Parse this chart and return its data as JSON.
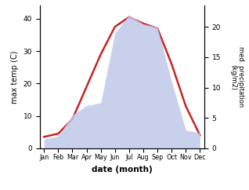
{
  "months": [
    "Jan",
    "Feb",
    "Mar",
    "Apr",
    "May",
    "Jun",
    "Jul",
    "Aug",
    "Sep",
    "Oct",
    "Nov",
    "Dec"
  ],
  "month_indices": [
    0,
    1,
    2,
    3,
    4,
    5,
    6,
    7,
    8,
    9,
    10,
    11
  ],
  "temperature": [
    3.5,
    4.5,
    9.0,
    19.0,
    29.0,
    37.5,
    40.5,
    38.5,
    37.0,
    26.0,
    13.0,
    4.0
  ],
  "precipitation": [
    1.5,
    2.0,
    5.5,
    7.0,
    7.5,
    19.0,
    22.0,
    20.5,
    20.0,
    11.0,
    3.0,
    2.5
  ],
  "temp_color": "#cc2222",
  "precip_fill_color": "#c0c8e8",
  "precip_fill_alpha": 0.85,
  "temp_linewidth": 1.8,
  "ylabel_left": "max temp (C)",
  "ylabel_right": "med. precipitation\n(kg/m2)",
  "xlabel": "date (month)",
  "ylim_left": [
    0,
    44
  ],
  "ylim_right": [
    0,
    23.5
  ],
  "yticks_left": [
    0,
    10,
    20,
    30,
    40
  ],
  "yticks_right": [
    0,
    5,
    10,
    15,
    20
  ],
  "background_color": "#ffffff",
  "fig_width": 3.18,
  "fig_height": 2.42,
  "dpi": 100
}
